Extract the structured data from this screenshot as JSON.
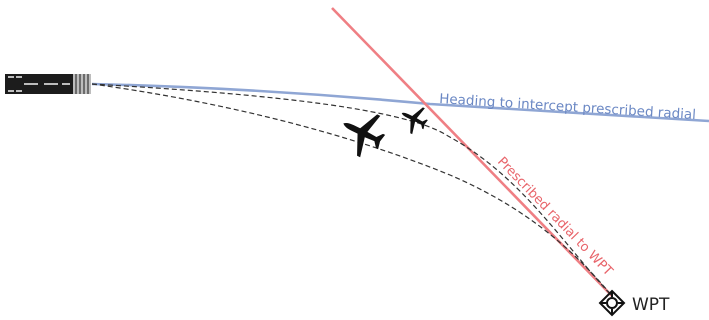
{
  "labels": {
    "heading": "Heading to intercept prescribed radial",
    "radial": "Prescribed radial to WPT",
    "waypoint": "WPT"
  },
  "colors": {
    "heading_line": "#8fa6d4",
    "radial_line": "#ef7f84",
    "track": "#333333",
    "aircraft": "#111111",
    "runway": "#1c1c1c"
  },
  "icons": {
    "runway": "runway-icon",
    "large_aircraft": "large-aircraft-icon",
    "small_aircraft": "small-aircraft-icon",
    "waypoint": "waypoint-diamond-icon"
  }
}
